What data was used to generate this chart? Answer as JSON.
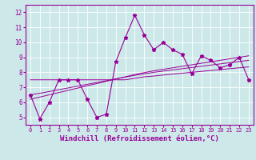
{
  "xlabel": "Windchill (Refroidissement éolien,°C)",
  "x": [
    0,
    1,
    2,
    3,
    4,
    5,
    6,
    7,
    8,
    9,
    10,
    11,
    12,
    13,
    14,
    15,
    16,
    17,
    18,
    19,
    20,
    21,
    22,
    23
  ],
  "y_main": [
    6.5,
    4.9,
    6.0,
    7.5,
    7.5,
    7.5,
    6.2,
    5.0,
    5.2,
    8.7,
    10.3,
    11.8,
    10.5,
    9.5,
    10.0,
    9.5,
    9.2,
    7.9,
    9.1,
    8.8,
    8.3,
    8.5,
    9.0,
    7.5
  ],
  "y_reg1": [
    7.5,
    7.5,
    7.5,
    7.5,
    7.5,
    7.5,
    7.5,
    7.5,
    7.5,
    7.5,
    7.5,
    7.6,
    7.7,
    7.75,
    7.82,
    7.88,
    7.94,
    8.0,
    8.06,
    8.12,
    8.18,
    8.24,
    8.3,
    8.36
  ],
  "y_reg2": [
    6.5,
    6.6,
    6.72,
    6.84,
    6.96,
    7.08,
    7.2,
    7.32,
    7.44,
    7.56,
    7.68,
    7.8,
    7.9,
    8.0,
    8.08,
    8.16,
    8.24,
    8.32,
    8.4,
    8.48,
    8.56,
    8.64,
    8.72,
    8.8
  ],
  "y_reg3": [
    6.2,
    6.35,
    6.5,
    6.65,
    6.8,
    6.95,
    7.1,
    7.25,
    7.4,
    7.55,
    7.7,
    7.85,
    7.98,
    8.1,
    8.2,
    8.3,
    8.4,
    8.5,
    8.6,
    8.7,
    8.8,
    8.9,
    9.0,
    9.1
  ],
  "ylim": [
    4.5,
    12.5
  ],
  "yticks": [
    5,
    6,
    7,
    8,
    9,
    10,
    11,
    12
  ],
  "xticks": [
    0,
    1,
    2,
    3,
    4,
    5,
    6,
    7,
    8,
    9,
    10,
    11,
    12,
    13,
    14,
    15,
    16,
    17,
    18,
    19,
    20,
    21,
    22,
    23
  ],
  "line_color": "#990099",
  "bg_color": "#cce8e8",
  "grid_color": "#aacccc",
  "marker": "*",
  "marker_size": 3.5,
  "xlabel_fontsize": 6.5,
  "tick_fontsize": 5.5
}
